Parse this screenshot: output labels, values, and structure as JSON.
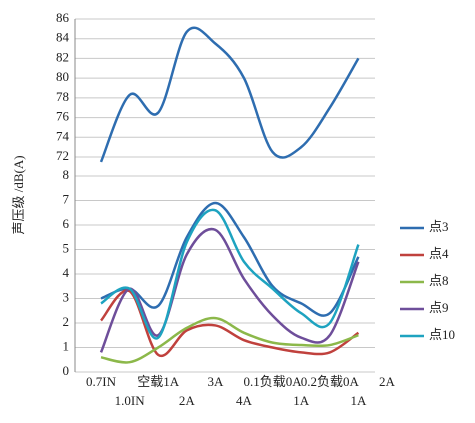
{
  "chart_data": {
    "type": "line",
    "ylabel": "声压级 /dB(A)",
    "categories": [
      "0.7IN",
      "1.0IN",
      "空载1A",
      "2A",
      "3A",
      "4A",
      "0.1负载0A",
      "1A",
      "0.2负载0A",
      "1A",
      "2A"
    ],
    "ylim": [
      0,
      8
    ],
    "yticks": [
      0,
      1,
      2,
      3,
      4,
      5,
      6,
      7,
      8
    ],
    "grid": true,
    "series": [
      {
        "name": "点3",
        "color": "#2e6db0",
        "values": [
          3.0,
          3.4,
          2.7,
          5.5,
          6.9,
          5.5,
          3.5,
          2.8,
          2.4,
          4.7,
          null
        ]
      },
      {
        "name": "点4",
        "color": "#c0413d",
        "values": [
          2.1,
          3.3,
          0.7,
          1.7,
          1.9,
          1.3,
          1.0,
          0.8,
          0.8,
          1.6,
          null
        ]
      },
      {
        "name": "点8",
        "color": "#8cb84a",
        "values": [
          0.6,
          0.4,
          1.0,
          1.8,
          2.2,
          1.6,
          1.2,
          1.1,
          1.1,
          1.5,
          null
        ]
      },
      {
        "name": "点9",
        "color": "#6e4e9a",
        "values": [
          0.8,
          3.4,
          1.5,
          4.8,
          5.8,
          3.8,
          2.3,
          1.4,
          1.5,
          4.5,
          null
        ]
      },
      {
        "name": "点10",
        "color": "#1ea3c0",
        "values": [
          2.8,
          3.4,
          1.4,
          5.3,
          6.6,
          4.5,
          3.4,
          2.4,
          2.0,
          5.2,
          null
        ]
      }
    ],
    "upper": {
      "ylim": [
        72,
        86
      ],
      "yticks": [
        72,
        74,
        76,
        78,
        80,
        82,
        84,
        86
      ],
      "series": [
        {
          "color": "#2e6db0",
          "values": [
            71.5,
            78.3,
            76.5,
            84.7,
            83.5,
            80.0,
            72.5,
            73.0,
            77.0,
            82.0,
            null
          ]
        }
      ]
    }
  }
}
